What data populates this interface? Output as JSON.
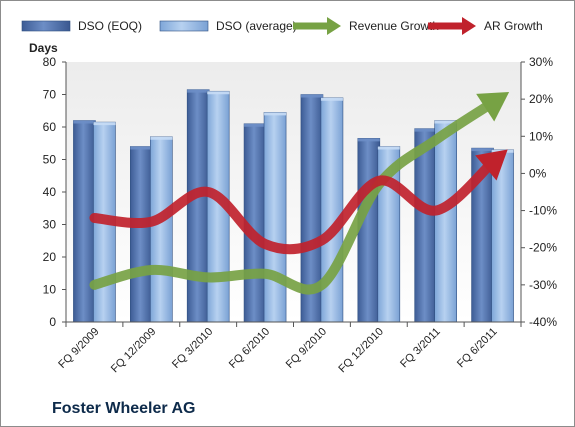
{
  "company": "Foster Wheeler AG",
  "chart_data": {
    "type": "bar",
    "categories": [
      "FQ 9/2009",
      "FQ 12/2009",
      "FQ 3/2010",
      "FQ 6/2010",
      "FQ 9/2010",
      "FQ 12/2010",
      "FQ 3/2011",
      "FQ 6/2011"
    ],
    "series": [
      {
        "name": "DSO (EOQ)",
        "kind": "bar",
        "axis": "left",
        "color": "#4f6fa8",
        "values": [
          62,
          54,
          71.5,
          61,
          70,
          56.5,
          59.5,
          53.5
        ]
      },
      {
        "name": "DSO (average)",
        "kind": "bar",
        "axis": "left",
        "color": "#8fb4e3",
        "values": [
          61.5,
          57,
          71,
          64.5,
          69,
          54,
          62,
          53
        ]
      },
      {
        "name": "Revenue Growth",
        "kind": "arrow-line",
        "axis": "right",
        "color": "#77a244",
        "values": [
          -30,
          -26,
          -28,
          -27,
          -30,
          -3,
          9,
          19
        ]
      },
      {
        "name": "AR Growth",
        "kind": "arrow-line",
        "axis": "right",
        "color": "#c0222c",
        "values": [
          -12,
          -13,
          -5,
          -19,
          -18,
          -2,
          -10,
          3
        ]
      }
    ],
    "ylabel": "Days",
    "ylim": [
      0,
      80
    ],
    "yticks": [
      "0",
      "10",
      "20",
      "30",
      "40",
      "50",
      "60",
      "70",
      "80"
    ],
    "y2lim": [
      -40,
      30
    ],
    "y2ticks": [
      "-40%",
      "-30%",
      "-20%",
      "-10%",
      "0%",
      "10%",
      "20%",
      "30%"
    ],
    "grid": false,
    "legend": "top"
  }
}
